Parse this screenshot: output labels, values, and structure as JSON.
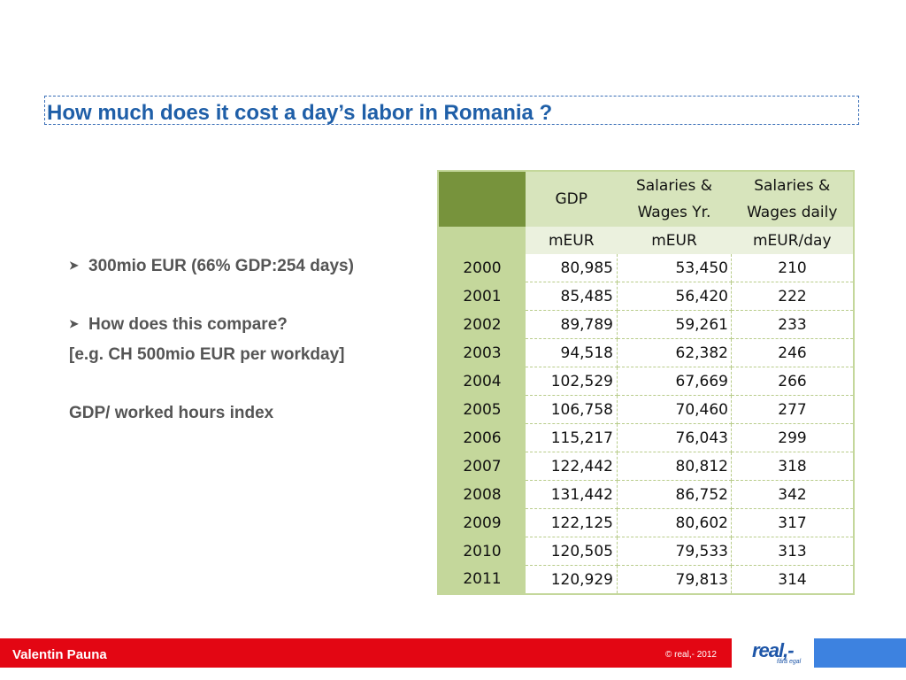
{
  "slide": {
    "title": "How much does it cost a day’s labor in Romania ?",
    "bullets": [
      "300mio EUR (66% GDP:254 days)",
      "How does this compare?"
    ],
    "notes": [
      "[e.g. CH 500mio EUR per workday]",
      "GDP/ worked hours  index"
    ]
  },
  "table": {
    "headers": [
      [
        "GDP"
      ],
      [
        "Salaries &",
        "Wages Yr."
      ],
      [
        "Salaries &",
        "Wages daily"
      ]
    ],
    "units": [
      "mEUR",
      "mEUR",
      "mEUR/day"
    ],
    "rows": [
      [
        "2000",
        "80,985",
        "53,450",
        "210"
      ],
      [
        "2001",
        "85,485",
        "56,420",
        "222"
      ],
      [
        "2002",
        "89,789",
        "59,261",
        "233"
      ],
      [
        "2003",
        "94,518",
        "62,382",
        "246"
      ],
      [
        "2004",
        "102,529",
        "67,669",
        "266"
      ],
      [
        "2005",
        "106,758",
        "70,460",
        "277"
      ],
      [
        "2006",
        "115,217",
        "76,043",
        "299"
      ],
      [
        "2007",
        "122,442",
        "80,812",
        "318"
      ],
      [
        "2008",
        "131,442",
        "86,752",
        "342"
      ],
      [
        "2009",
        "122,125",
        "80,602",
        "317"
      ],
      [
        "2010",
        "120,505",
        "79,533",
        "313"
      ],
      [
        "2011",
        "120,929",
        "79,813",
        "314"
      ]
    ]
  },
  "footer": {
    "author": "Valentin Pauna",
    "copyright": "© real,- 2012",
    "logo_text": "real,-",
    "logo_tagline": "fără egal"
  },
  "colors": {
    "title": "#1f5fa8",
    "header_dark_green": "#77933c",
    "header_light_green": "#d7e4bc",
    "year_column": "#c4d79b",
    "footer_red": "#e30613",
    "footer_blue": "#3d82e0"
  },
  "icons": [
    "bullet-arrow-icon",
    "real-logo"
  ]
}
